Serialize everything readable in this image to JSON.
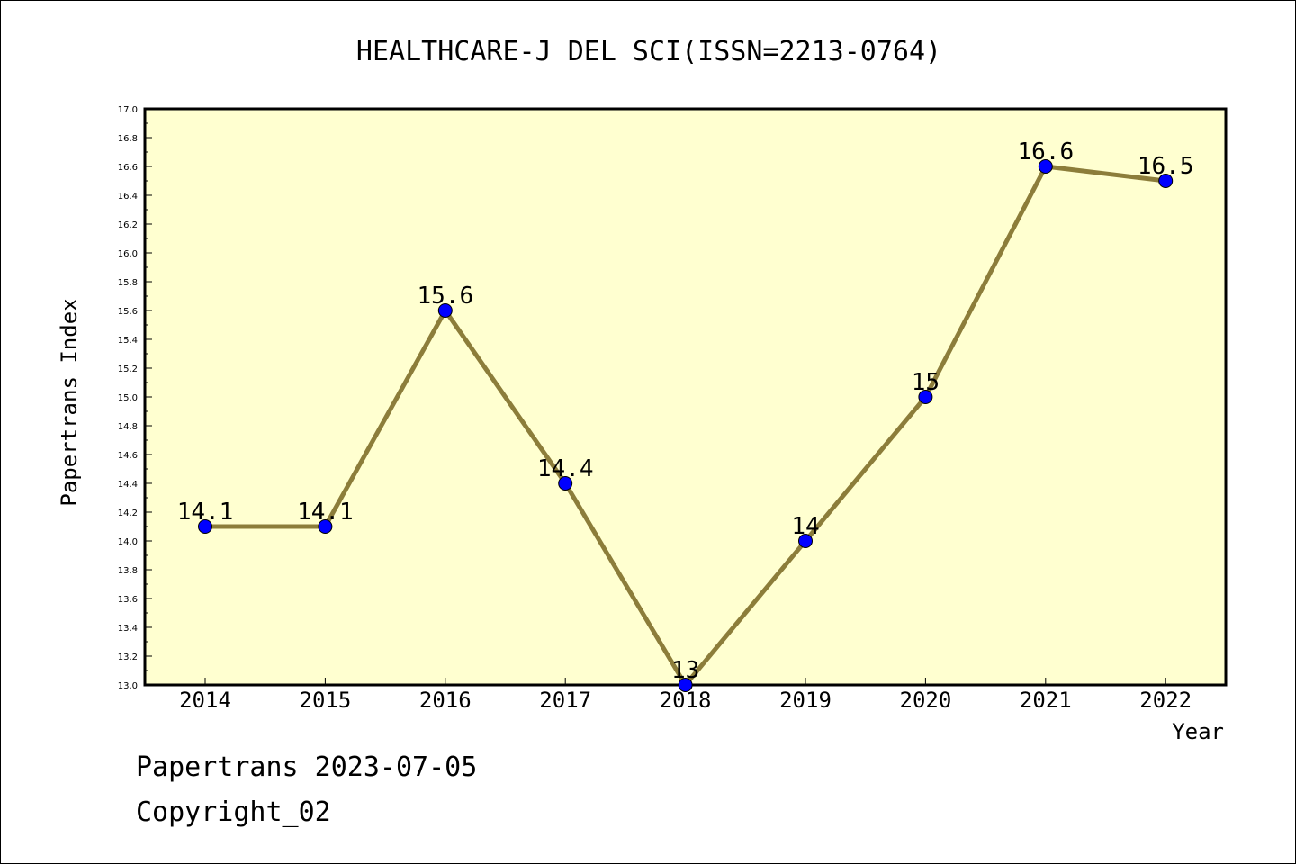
{
  "chart_data": {
    "type": "line",
    "title": "HEALTHCARE-J DEL SCI(ISSN=2213-0764)",
    "xlabel": "Year",
    "ylabel": "Papertrans Index",
    "categories": [
      "2014",
      "2015",
      "2016",
      "2017",
      "2018",
      "2019",
      "2020",
      "2021",
      "2022"
    ],
    "series": [
      {
        "values": [
          14.1,
          14.1,
          15.6,
          14.4,
          13,
          14,
          15,
          16.6,
          16.5
        ],
        "labels": [
          "14.1",
          "14.1",
          "15.6",
          "14.4",
          "13",
          "14",
          "15",
          "16.6",
          "16.5"
        ],
        "line_color": "#8c7d3a",
        "marker_color": "#0000ff"
      }
    ],
    "ylim": [
      13.0,
      17.0
    ],
    "yticks": [
      "13.0",
      "13.2",
      "13.4",
      "13.6",
      "13.8",
      "14.0",
      "14.2",
      "14.4",
      "14.6",
      "14.8",
      "15.0",
      "15.2",
      "15.4",
      "15.6",
      "15.8",
      "16.0",
      "16.2",
      "16.4",
      "16.6",
      "16.8",
      "17.0"
    ],
    "grid": false,
    "legend": "none",
    "plot_background": "#ffffd0"
  },
  "footer": {
    "line1": "Papertrans 2023-07-05",
    "line2": "Copyright_02"
  }
}
